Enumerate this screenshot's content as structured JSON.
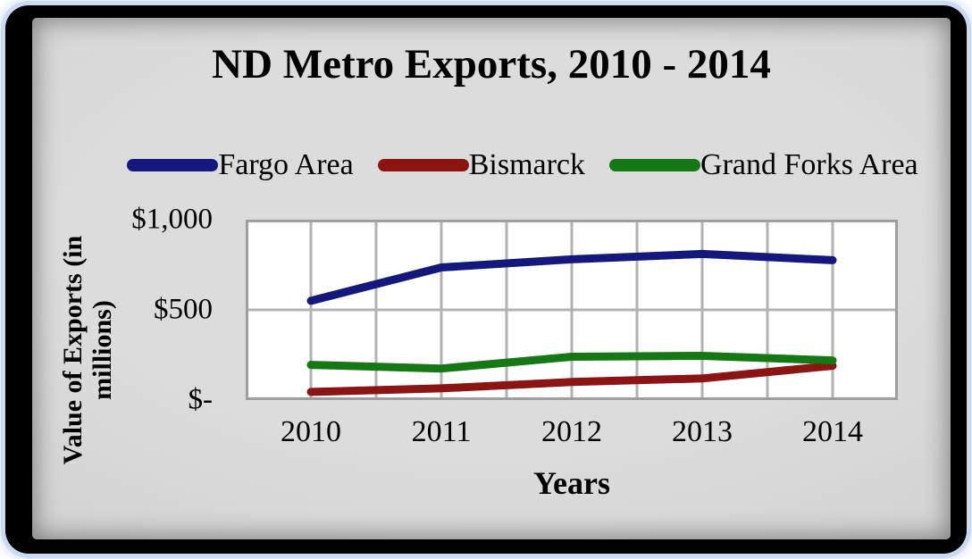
{
  "chart_data": {
    "type": "line",
    "title": "ND Metro Exports, 2010 - 2014",
    "xlabel": "Years",
    "ylabel": "Value of Exports (in millions)",
    "ylabel_lines": [
      "Value of Exports (in",
      "millions)"
    ],
    "categories": [
      "2010",
      "2011",
      "2012",
      "2013",
      "2014"
    ],
    "series": [
      {
        "name": "Fargo Area",
        "color": "#14187d",
        "values": [
          550,
          735,
          780,
          810,
          775
        ]
      },
      {
        "name": "Bismarck",
        "color": "#8b1513",
        "values": [
          45,
          65,
          100,
          120,
          190
        ]
      },
      {
        "name": "Grand Forks Area",
        "color": "#157815",
        "values": [
          195,
          175,
          240,
          245,
          220
        ]
      }
    ],
    "ylim": [
      0,
      1000
    ],
    "ytick_labels": [
      "$-",
      "$500",
      "$1,000"
    ],
    "ytick_values": [
      0,
      500,
      1000
    ],
    "grid": true,
    "legend_position": "top"
  },
  "style_colors": {
    "grid": "#b2b2b2",
    "plot_border": "#9e9e9e",
    "plot_bg": "#ffffff",
    "frame_border": "#000000",
    "frame_glow": "#c9daf2",
    "inner_bg": "#d6d6d6",
    "text": "#000000"
  }
}
